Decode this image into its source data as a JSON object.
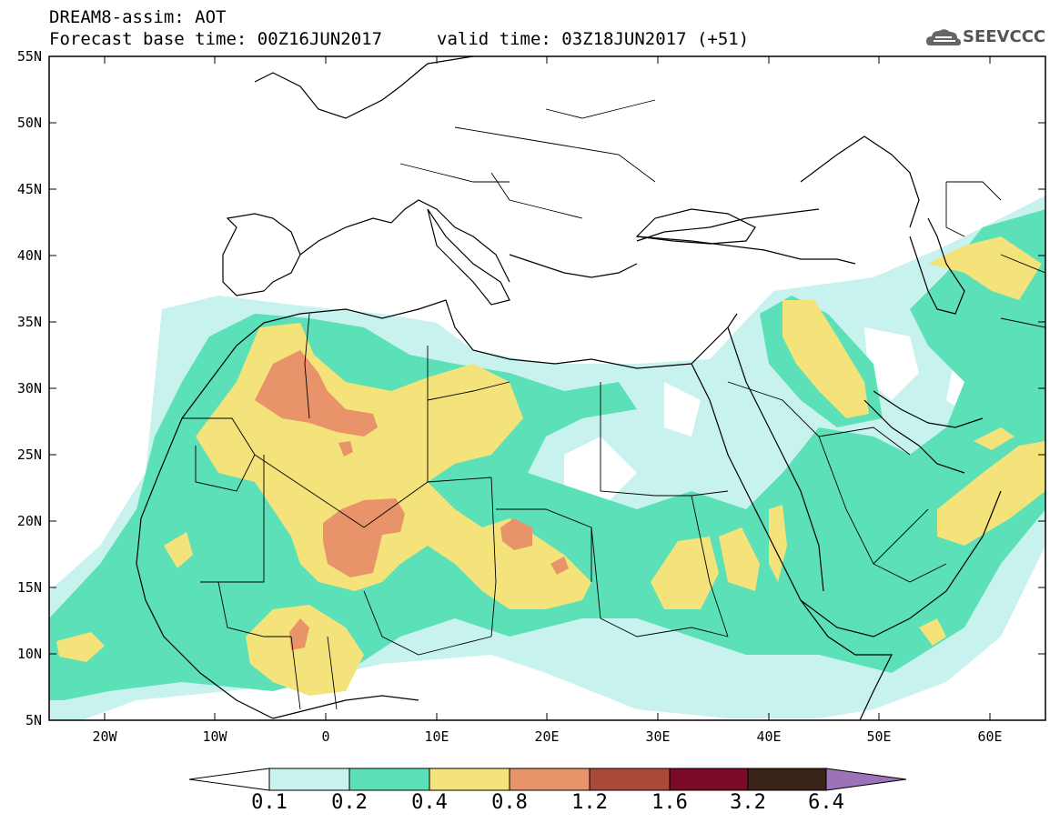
{
  "header": {
    "title_line1": "DREAM8-assim: AOT",
    "title_line2": "Forecast base time: 00Z16JUN2017",
    "valid_time": "valid time: 03Z18JUN2017 (+51)",
    "logo_text": "SEEVCCC"
  },
  "map": {
    "lat_labels": [
      "55N",
      "50N",
      "45N",
      "40N",
      "35N",
      "30N",
      "25N",
      "20N",
      "15N",
      "10N",
      "5N"
    ],
    "lon_labels": [
      "20W",
      "10W",
      "0",
      "10E",
      "20E",
      "30E",
      "40E",
      "50E",
      "60E"
    ],
    "extent": {
      "lon_min": -25,
      "lon_max": 65,
      "lat_min": 5,
      "lat_max": 55
    },
    "field": "Aerosol optical thickness (dust)"
  },
  "colorbar": {
    "labels": [
      "0.1",
      "0.2",
      "0.4",
      "0.8",
      "1.2",
      "1.6",
      "3.2",
      "6.4"
    ],
    "colors": [
      "#c8f2ee",
      "#5ce0b8",
      "#f4e37a",
      "#e8936a",
      "#a94a3a",
      "#7a0a25",
      "#3a2418",
      "#9c72b8"
    ]
  },
  "colors": {
    "lvl1": "#c8f2ee",
    "lvl2": "#5ce0b8",
    "lvl3": "#f4e37a",
    "lvl4": "#e8936a",
    "border": "#000000"
  }
}
